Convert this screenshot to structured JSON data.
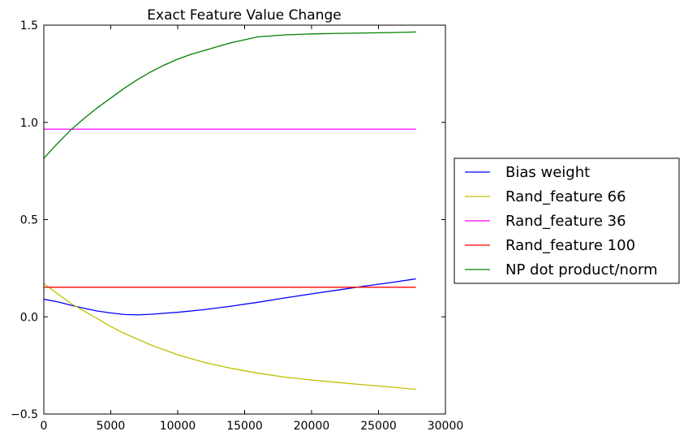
{
  "chart_data": {
    "type": "line",
    "title": "Exact Feature Value Change",
    "xlabel": "",
    "ylabel": "",
    "xlim": [
      0,
      30000
    ],
    "ylim": [
      -0.5,
      1.5
    ],
    "xticks": [
      0,
      5000,
      10000,
      15000,
      20000,
      25000,
      30000
    ],
    "xtick_labels": [
      "0",
      "5000",
      "10000",
      "15000",
      "20000",
      "25000",
      "30000"
    ],
    "yticks": [
      -0.5,
      0.0,
      0.5,
      1.0,
      1.5
    ],
    "ytick_labels": [
      "−0.5",
      "0.0",
      "0.5",
      "1.0",
      "1.5"
    ],
    "grid": false,
    "legend_position": "outside-right",
    "series": [
      {
        "name": "Bias weight",
        "color": "#0000ff",
        "x": [
          0,
          1000,
          2000,
          3000,
          4000,
          5000,
          6000,
          7000,
          8000,
          9000,
          10000,
          12000,
          14000,
          16000,
          18000,
          20000,
          22000,
          24000,
          26000,
          27800
        ],
        "y": [
          0.09,
          0.078,
          0.06,
          0.044,
          0.03,
          0.02,
          0.012,
          0.01,
          0.013,
          0.018,
          0.023,
          0.037,
          0.055,
          0.075,
          0.097,
          0.118,
          0.138,
          0.158,
          0.177,
          0.195
        ]
      },
      {
        "name": "Rand_feature 66",
        "color": "#bfbf00",
        "x": [
          0,
          1000,
          2000,
          3000,
          4000,
          5000,
          6000,
          7000,
          8000,
          9000,
          10000,
          12000,
          14000,
          16000,
          18000,
          20000,
          22000,
          24000,
          26000,
          27800
        ],
        "y": [
          0.17,
          0.12,
          0.07,
          0.03,
          -0.01,
          -0.05,
          -0.085,
          -0.115,
          -0.145,
          -0.17,
          -0.195,
          -0.235,
          -0.265,
          -0.29,
          -0.31,
          -0.325,
          -0.338,
          -0.35,
          -0.362,
          -0.373
        ]
      },
      {
        "name": "Rand_feature 36",
        "color": "#ff00ff",
        "x": [
          0,
          27800
        ],
        "y": [
          0.965,
          0.965
        ]
      },
      {
        "name": "Rand_feature 100",
        "color": "#ff0000",
        "x": [
          0,
          27800
        ],
        "y": [
          0.152,
          0.152
        ]
      },
      {
        "name": "NP dot product/norm",
        "color": "#008000",
        "x": [
          0,
          1000,
          2000,
          3000,
          4000,
          5000,
          6000,
          7000,
          8000,
          9000,
          10000,
          11000,
          12000,
          13000,
          14000,
          15000,
          16000,
          18000,
          20000,
          22000,
          24000,
          26000,
          27800
        ],
        "y": [
          0.815,
          0.89,
          0.96,
          1.02,
          1.075,
          1.125,
          1.175,
          1.22,
          1.26,
          1.295,
          1.325,
          1.35,
          1.37,
          1.39,
          1.41,
          1.425,
          1.44,
          1.45,
          1.455,
          1.458,
          1.46,
          1.462,
          1.465
        ]
      }
    ]
  }
}
